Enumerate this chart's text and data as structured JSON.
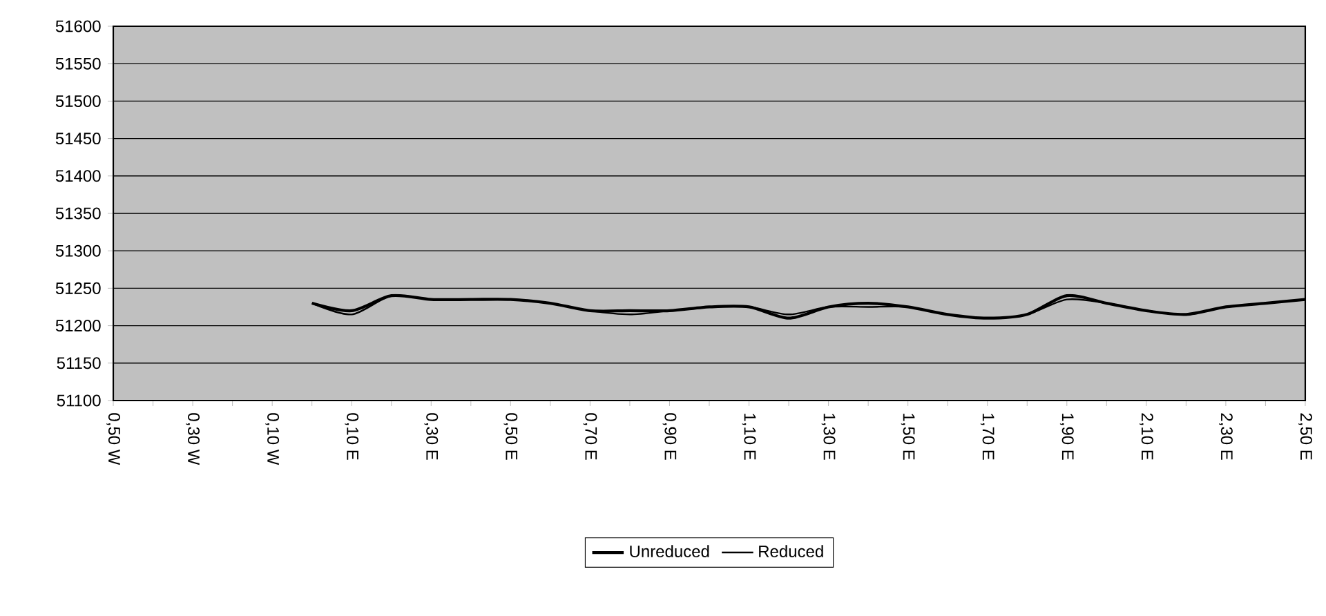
{
  "chart_data": {
    "type": "line",
    "categories": [
      "0,50 W",
      null,
      "0,30 W",
      null,
      "0,10 W",
      null,
      "0,10 E",
      null,
      "0,30 E",
      null,
      "0,50 E",
      null,
      "0,70 E",
      null,
      "0,90 E",
      null,
      "1,10 E",
      null,
      "1,30 E",
      null,
      "1,50 E",
      null,
      "1,70 E",
      null,
      "1,90 E",
      null,
      "2,10 E",
      null,
      "2,30 E",
      null,
      "2,50 E"
    ],
    "series": [
      {
        "name": "Unreduced",
        "color": "#000000",
        "values": [
          null,
          null,
          null,
          null,
          null,
          51230,
          51220,
          51240,
          51235,
          51235,
          51235,
          51230,
          51220,
          51220,
          51220,
          51225,
          51225,
          51210,
          51225,
          51230,
          51225,
          51215,
          51210,
          51215,
          51240,
          51230,
          51220,
          51215,
          51225,
          51230,
          51235
        ]
      },
      {
        "name": "Reduced",
        "color": "#000000",
        "values": [
          null,
          null,
          null,
          null,
          null,
          51230,
          51215,
          51240,
          51235,
          51235,
          51235,
          51230,
          51220,
          51215,
          51220,
          51225,
          51225,
          51215,
          51225,
          51225,
          51225,
          51215,
          51210,
          51215,
          51235,
          51230,
          51220,
          51215,
          51225,
          51230,
          51235
        ]
      }
    ],
    "ylim": [
      51100,
      51600
    ],
    "yticks": [
      51100,
      51150,
      51200,
      51250,
      51300,
      51350,
      51400,
      51450,
      51500,
      51550,
      51600
    ],
    "grid": "y",
    "legend": "bottom",
    "line_style": "solid",
    "marker": "none"
  }
}
